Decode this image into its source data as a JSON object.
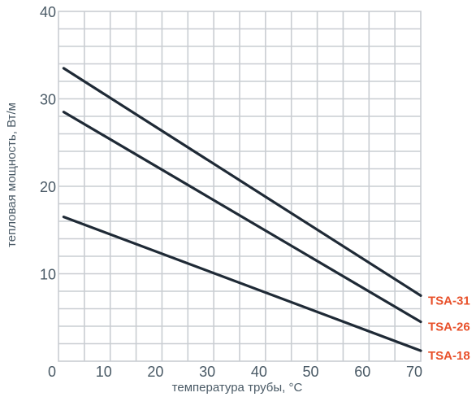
{
  "chart_data": {
    "type": "line",
    "xlabel": "температура трубы, °С",
    "ylabel": "тепловая мощность, Вт/м",
    "xlim": [
      0,
      70
    ],
    "ylim": [
      0,
      40
    ],
    "x_ticks": [
      "0",
      "10",
      "20",
      "30",
      "40",
      "50",
      "60",
      "70"
    ],
    "y_ticks": [
      "10",
      "20",
      "30",
      "40"
    ],
    "grid": true,
    "series": [
      {
        "name": "TSA-31",
        "x": [
          1,
          70
        ],
        "y": [
          33.5,
          7.5
        ]
      },
      {
        "name": "TSA-26",
        "x": [
          1,
          70
        ],
        "y": [
          28.5,
          4.5
        ]
      },
      {
        "name": "TSA-18",
        "x": [
          1,
          70
        ],
        "y": [
          16.5,
          1.2
        ]
      }
    ],
    "colors": {
      "line": "#1f2a36",
      "label": "#e8502a",
      "grid": "#c9cdd2",
      "text": "#4a5a66"
    }
  }
}
